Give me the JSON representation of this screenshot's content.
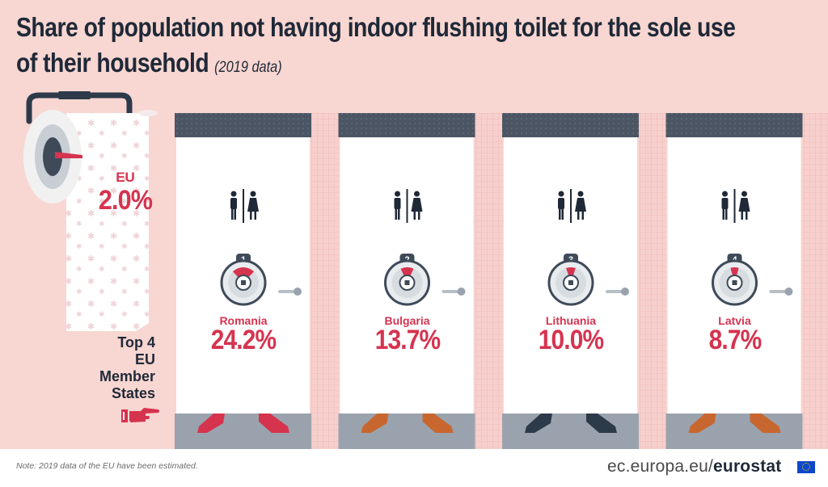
{
  "title": "Share of population not having indoor flushing toilet for the sole use of their household",
  "title_line1": "Share of population not having indoor flushing toilet for the sole use",
  "title_line2": "of their household",
  "subtitle": "(2019 data)",
  "eu": {
    "label": "EU",
    "value_text": "2.0%"
  },
  "side_label": [
    "Top 4",
    "EU",
    "Member",
    "States"
  ],
  "note": "Note: 2019 data of the EU have been estimated.",
  "brand": {
    "domain": "ec.europa.eu/",
    "name": "eurostat"
  },
  "colors": {
    "accent": "#d6334f",
    "text": "#1f2937",
    "background": "#f8d6d2",
    "door": "#ffffff",
    "stall_top": "#4a5563"
  },
  "icons": [
    "toilet-paper-icon",
    "restroom-sign-icon",
    "door-lock-icon",
    "door-handle-icon",
    "pointing-hand-icon",
    "eu-flag-icon"
  ],
  "chart_data": {
    "type": "bar",
    "title": "Share of population not having indoor flushing toilet for the sole use of their household",
    "subtitle": "(2019 data)",
    "categories": [
      "Romania",
      "Bulgaria",
      "Lithuania",
      "Latvia"
    ],
    "values": [
      24.2,
      13.7,
      10.0,
      8.7
    ],
    "value_labels": [
      "24.2%",
      "13.7%",
      "10.0%",
      "8.7%"
    ],
    "ranks": [
      "1",
      "2",
      "3",
      "4"
    ],
    "unit": "%",
    "reference": {
      "name": "EU",
      "value": 2.0
    },
    "ylim": [
      0,
      100
    ]
  }
}
